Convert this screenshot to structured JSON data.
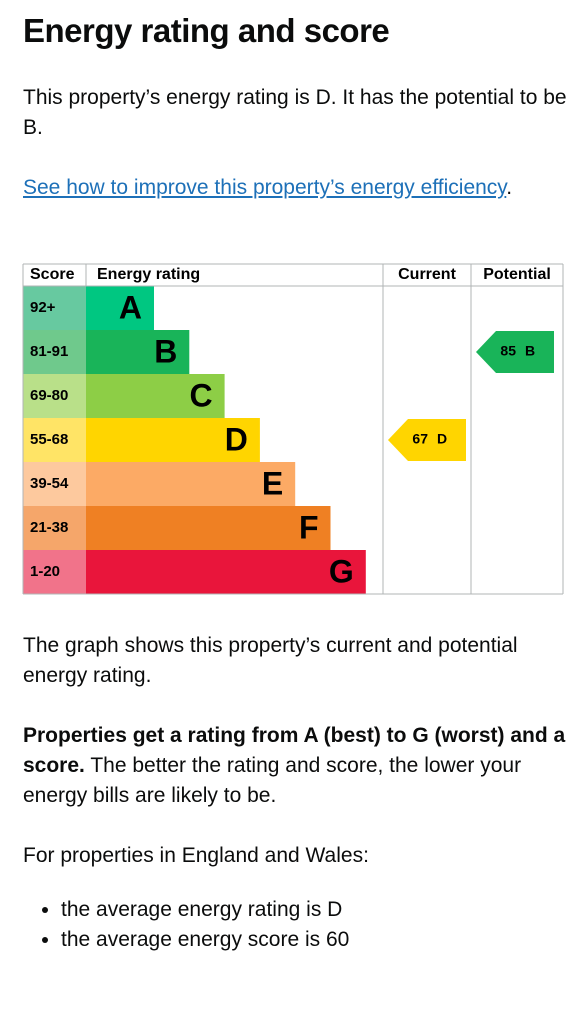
{
  "title": "Energy rating and score",
  "intro": "This property’s energy rating is D. It has the potential to be B.",
  "link": {
    "text": "See how to improve this property’s energy efficiency",
    "after": "."
  },
  "chart": {
    "headers": [
      "Score",
      "Energy rating",
      "Current",
      "Potential"
    ],
    "bands": [
      {
        "score": "92+",
        "letter": "A",
        "color": "#00c781",
        "score_color": "#67c9a0"
      },
      {
        "score": "81-91",
        "letter": "B",
        "color": "#19b459",
        "score_color": "#6fc98c"
      },
      {
        "score": "69-80",
        "letter": "C",
        "color": "#8dce46",
        "score_color": "#b9e089"
      },
      {
        "score": "55-68",
        "letter": "D",
        "color": "#ffd500",
        "score_color": "#ffe466"
      },
      {
        "score": "39-54",
        "letter": "E",
        "color": "#fcaa65",
        "score_color": "#fdc99e"
      },
      {
        "score": "21-38",
        "letter": "F",
        "color": "#ef8023",
        "score_color": "#f5a66a"
      },
      {
        "score": "1-20",
        "letter": "G",
        "color": "#e9153b",
        "score_color": "#f1738a"
      }
    ],
    "current": {
      "score": "67",
      "letter": "D"
    },
    "potential": {
      "score": "85",
      "letter": "B"
    }
  },
  "paragraphs": [
    "The graph shows this property’s current and potential energy rating.",
    {
      "bold": "Properties get a rating from A (best) to G (worst) and a score.",
      "rest": " The better the rating and score, the lower your energy bills are likely to be."
    },
    "For properties in England and Wales:"
  ],
  "list": [
    "the average energy rating is D",
    "the average energy score is 60"
  ]
}
